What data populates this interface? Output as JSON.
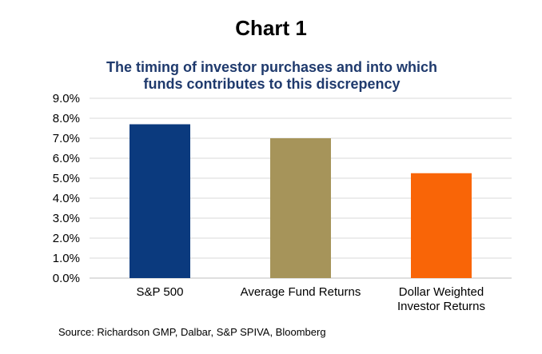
{
  "heading": "Chart 1",
  "chart_data": {
    "type": "bar",
    "title": "The timing of investor purchases and into which funds contributes to this discrepency",
    "title_lines": [
      "The timing of investor purchases and into which",
      "funds contributes to this discrepency"
    ],
    "categories": [
      "S&P 500",
      "Average Fund Returns",
      "Dollar Weighted Investor Returns"
    ],
    "category_lines": [
      [
        "S&P 500"
      ],
      [
        "Average Fund Returns"
      ],
      [
        "Dollar Weighted",
        "Investor Returns"
      ]
    ],
    "values": [
      7.7,
      7.0,
      5.25
    ],
    "colors": [
      "#0b3a7e",
      "#a6945a",
      "#f96507"
    ],
    "ylim": [
      0,
      9
    ],
    "yticks": [
      0,
      1,
      2,
      3,
      4,
      5,
      6,
      7,
      8,
      9
    ],
    "ytick_labels": [
      "0.0%",
      "1.0%",
      "2.0%",
      "3.0%",
      "4.0%",
      "5.0%",
      "6.0%",
      "7.0%",
      "8.0%",
      "9.0%"
    ],
    "xlabel": "",
    "ylabel": "",
    "grid": true,
    "grid_color": "#d9d9d9"
  },
  "source": "Source: Richardson GMP, Dalbar, S&P SPIVA, Bloomberg"
}
